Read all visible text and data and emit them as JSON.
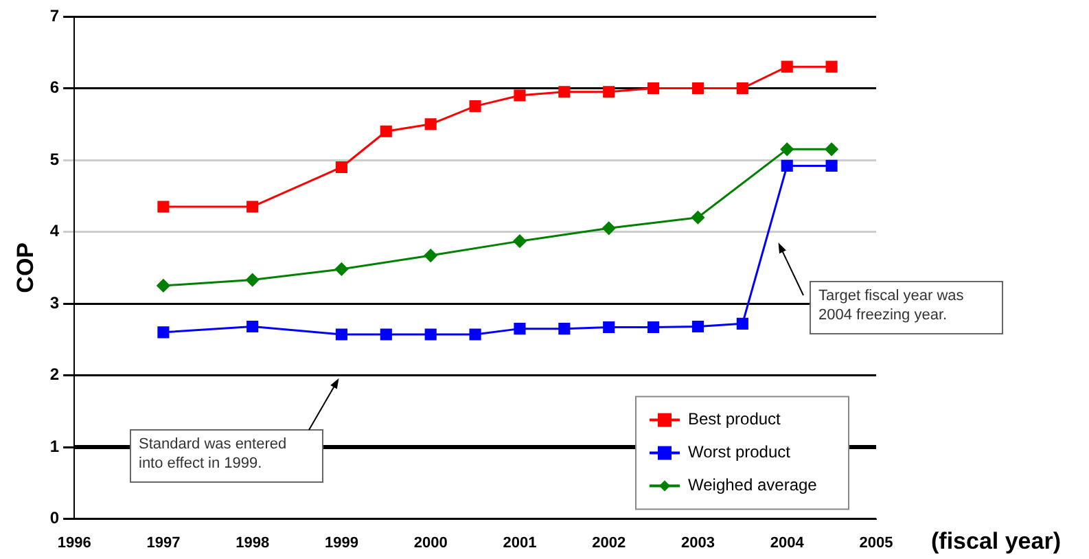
{
  "chart_data": {
    "type": "line",
    "xlabel": "(fiscal year)",
    "ylabel": "COP",
    "x": [
      1997,
      1998,
      1999,
      1999.5,
      2000,
      2000.5,
      2001,
      2001.5,
      2002,
      2002.5,
      2003,
      2003.5,
      2004,
      2004.5
    ],
    "series": [
      {
        "name": "Best product",
        "color": "#ff0000",
        "marker": "square",
        "values": [
          4.35,
          4.35,
          4.9,
          5.4,
          5.5,
          5.75,
          5.9,
          5.95,
          5.95,
          6.0,
          6.0,
          6.0,
          6.3,
          6.3
        ]
      },
      {
        "name": "Worst product",
        "color": "#0000ff",
        "marker": "square",
        "values": [
          2.6,
          2.68,
          2.57,
          2.57,
          2.57,
          2.57,
          2.65,
          2.65,
          2.67,
          2.67,
          2.68,
          2.72,
          4.92,
          4.92
        ]
      },
      {
        "name": "Weighed average",
        "color": "#008000",
        "marker": "diamond",
        "x": [
          1997,
          1998,
          1999,
          2000,
          2001,
          2002,
          2003,
          2004,
          2004.5
        ],
        "values": [
          3.25,
          3.33,
          3.48,
          3.67,
          3.87,
          4.05,
          4.2,
          5.15,
          5.15
        ]
      }
    ],
    "xlim": [
      1996,
      2005
    ],
    "xticks": [
      1996,
      1997,
      1998,
      1999,
      2000,
      2001,
      2002,
      2003,
      2004,
      2005
    ],
    "ylim": [
      0,
      7
    ],
    "yticks": [
      0,
      1,
      2,
      3,
      4,
      5,
      6,
      7
    ],
    "grid": "y",
    "legend": "bottom right",
    "line_style": "solid",
    "annotations": [
      "Standard was entered into effect in 1999.",
      "Target fiscal year was 2004 freezing year."
    ],
    "ref_lines": [
      {
        "axis": "y",
        "value": 1,
        "color": "#000000"
      }
    ]
  }
}
